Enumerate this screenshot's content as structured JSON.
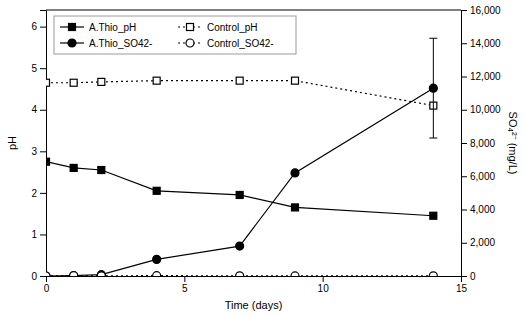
{
  "chart_data": {
    "type": "line",
    "x": [
      0,
      1,
      2,
      4,
      7,
      9,
      14
    ],
    "xlabel": "Time (days)",
    "ylabel": "pH",
    "y2label": "SO₄²⁻ (mg/L)",
    "xlim": [
      0,
      15
    ],
    "xticks": [
      0,
      5,
      10,
      15
    ],
    "ylim": [
      0,
      6.4
    ],
    "yticks": [
      0,
      1,
      2,
      3,
      4,
      5,
      6
    ],
    "y2lim": [
      0,
      16000
    ],
    "y2ticks": [
      0,
      {
        "value": 2000,
        "label": "2,000"
      },
      {
        "value": 4000,
        "label": "4,000"
      },
      {
        "value": 6000,
        "label": "6,000"
      },
      {
        "value": 8000,
        "label": "8,000"
      },
      {
        "value": 10000,
        "label": "10,000"
      },
      {
        "value": 12000,
        "label": "12,000"
      },
      {
        "value": 14000,
        "label": "14,000"
      },
      {
        "value": 16000,
        "label": "16,000"
      }
    ],
    "grid": false,
    "legend": "upper left",
    "series": [
      {
        "name": "A.Thio_pH",
        "color": "#000000",
        "marker": "square",
        "line_style": "solid",
        "values": [
          2.75,
          2.6,
          2.55,
          2.05,
          1.95,
          1.65,
          1.45
        ]
      },
      {
        "name": "Control_pH",
        "color": "#000000",
        "marker": "open-square",
        "line_style": "dotted",
        "values": [
          4.65,
          4.65,
          4.67,
          4.7,
          4.7,
          4.7,
          4.1
        ]
      },
      {
        "name": "A.Thio_SO42-",
        "color": "#000000",
        "marker": "circle",
        "line_style": "solid",
        "axis": "y2",
        "values": [
          0,
          30,
          80,
          1000,
          1800,
          6200,
          11300
        ],
        "errors": [
          null,
          null,
          null,
          null,
          null,
          null,
          3000
        ]
      },
      {
        "name": "Control_SO42-",
        "color": "#000000",
        "marker": "open-circle",
        "line_style": "dotted",
        "axis": "y2",
        "values": [
          0,
          15,
          10,
          20,
          10,
          5,
          10
        ]
      }
    ]
  }
}
